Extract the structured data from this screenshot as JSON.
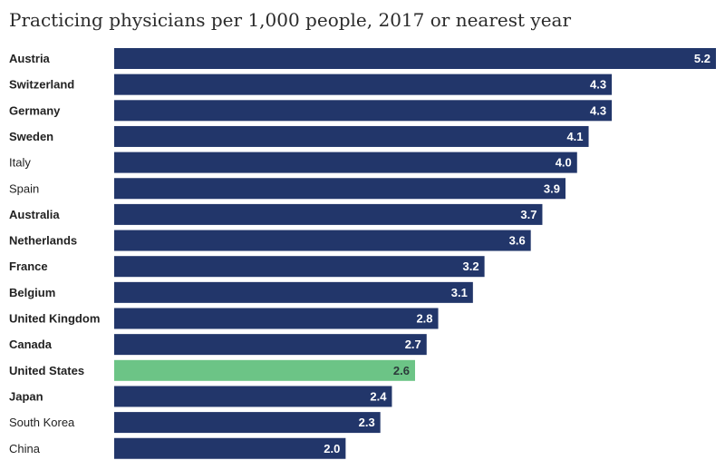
{
  "chart_data": {
    "type": "bar",
    "orientation": "horizontal",
    "title": "Practicing physicians per 1,000 people, 2017 or nearest year",
    "xlabel": "",
    "ylabel": "",
    "xlim": [
      0,
      5.2
    ],
    "grid": false,
    "categories": [
      "Austria",
      "Switzerland",
      "Germany",
      "Sweden",
      "Italy",
      "Spain",
      "Australia",
      "Netherlands",
      "France",
      "Belgium",
      "United Kingdom",
      "Canada",
      "United States",
      "Japan",
      "South Korea",
      "China"
    ],
    "values": [
      5.2,
      4.3,
      4.3,
      4.1,
      4.0,
      3.9,
      3.7,
      3.6,
      3.2,
      3.1,
      2.8,
      2.7,
      2.6,
      2.4,
      2.3,
      2.0
    ],
    "value_labels": [
      "5.2",
      "4.3",
      "4.3",
      "4.1",
      "4.0",
      "3.9",
      "3.7",
      "3.6",
      "3.2",
      "3.1",
      "2.8",
      "2.7",
      "2.6",
      "2.4",
      "2.3",
      "2.0"
    ],
    "bold_categories": [
      "Austria",
      "Switzerland",
      "Germany",
      "Sweden",
      "Australia",
      "Netherlands",
      "France",
      "Belgium",
      "United Kingdom",
      "Canada",
      "United States",
      "Japan"
    ],
    "highlight": "United States",
    "colors": {
      "bar": "#22366a",
      "highlight": "#6cc486",
      "label_on_bar": "#ffffff",
      "label_on_highlight": "#2b3a3a"
    }
  }
}
